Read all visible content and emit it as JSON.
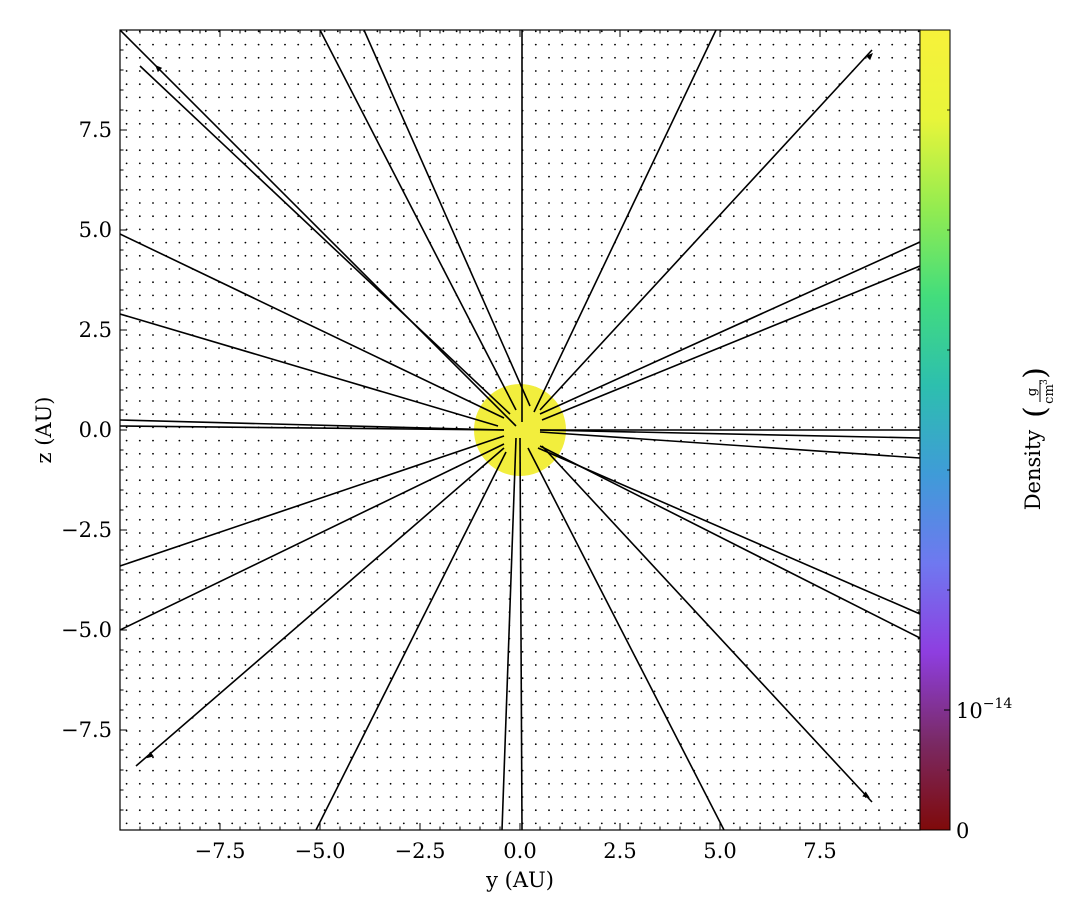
{
  "chart_data": {
    "type": "scatter",
    "title": "",
    "xlabel": "y (AU)",
    "ylabel": "z (AU)",
    "xlim": [
      -10,
      10
    ],
    "ylim": [
      -10,
      10
    ],
    "x_ticks": [
      {
        "value": -7.5,
        "label": "−7.5"
      },
      {
        "value": -5.0,
        "label": "−5.0"
      },
      {
        "value": -2.5,
        "label": "−2.5"
      },
      {
        "value": 0.0,
        "label": "0.0"
      },
      {
        "value": 2.5,
        "label": "2.5"
      },
      {
        "value": 5.0,
        "label": "5.0"
      },
      {
        "value": 7.5,
        "label": "7.5"
      }
    ],
    "y_ticks": [
      {
        "value": 7.5,
        "label": "7.5"
      },
      {
        "value": 5.0,
        "label": "5.0"
      },
      {
        "value": 2.5,
        "label": "2.5"
      },
      {
        "value": 0.0,
        "label": "0.0"
      },
      {
        "value": -2.5,
        "label": "−2.5"
      },
      {
        "value": -5.0,
        "label": "−5.0"
      },
      {
        "value": -7.5,
        "label": "−7.5"
      }
    ],
    "grid": false,
    "background_points": {
      "spacing": 0.33,
      "color": "#000000"
    },
    "central_blob": {
      "center": [
        0,
        0
      ],
      "radius": 1.15,
      "color": "#f2ee3d"
    },
    "streamlines": [
      [
        -0.1,
        0.1,
        -10,
        10
      ],
      [
        0.05,
        0.2,
        0.05,
        10
      ],
      [
        -0.1,
        0.5,
        -5,
        10
      ],
      [
        0.25,
        0.6,
        -3.9,
        10
      ],
      [
        0.35,
        0.45,
        4.9,
        10
      ],
      [
        0.5,
        0.5,
        8.8,
        9.5
      ],
      [
        0.5,
        0.4,
        10,
        4.7
      ],
      [
        0.55,
        0.25,
        10,
        4.1
      ],
      [
        -0.25,
        0.4,
        -9.5,
        9.1
      ],
      [
        -0.4,
        0.3,
        -10,
        4.9
      ],
      [
        -0.55,
        0.1,
        -10,
        2.9
      ],
      [
        -0.4,
        0.0,
        -10,
        0.25
      ],
      [
        -0.4,
        0.0,
        -10,
        0.1
      ],
      [
        0.5,
        0.0,
        10,
        0.0
      ],
      [
        0.5,
        0.0,
        10,
        -0.2
      ],
      [
        0.5,
        -0.05,
        10,
        -0.7
      ],
      [
        -0.4,
        -0.15,
        -10,
        -3.4
      ],
      [
        -0.4,
        -0.35,
        -10,
        -5.0
      ],
      [
        -0.4,
        -0.45,
        -9.6,
        -8.4
      ],
      [
        -0.35,
        -0.55,
        -5.1,
        -10
      ],
      [
        -0.1,
        -0.2,
        -0.45,
        -10
      ],
      [
        0.0,
        -0.2,
        0.05,
        -10
      ],
      [
        0.2,
        -0.45,
        5.1,
        -10
      ],
      [
        0.55,
        -0.4,
        8.8,
        -9.3
      ],
      [
        0.45,
        -0.45,
        10,
        -4.6
      ],
      [
        0.5,
        -0.4,
        10,
        -5.2
      ]
    ],
    "arrows": [
      {
        "at": [
          -9.0,
          9.0
        ],
        "toward": [
          -9.3,
          9.3
        ]
      },
      {
        "at": [
          8.7,
          9.3
        ],
        "toward": [
          8.9,
          9.5
        ]
      },
      {
        "at": [
          -9.2,
          -8.1
        ],
        "toward": [
          -9.6,
          -8.4
        ]
      },
      {
        "at": [
          8.6,
          -9.1
        ],
        "toward": [
          8.9,
          -9.3
        ]
      }
    ],
    "colorbar": {
      "label": "Density",
      "unit_numerator": "g",
      "unit_denominator": "cm",
      "unit_denominator_exponent": "3",
      "ticks": [
        {
          "value": "0",
          "label": "0"
        },
        {
          "value": "1e-14",
          "base": "10",
          "exponent": "−14"
        }
      ],
      "colormap": [
        "#7f0a0a",
        "#7a2a66",
        "#8e3ee0",
        "#6f78f0",
        "#3f9bd8",
        "#2dbfae",
        "#43dd7c",
        "#94ec50",
        "#e8f53a",
        "#f7f13a"
      ]
    }
  }
}
